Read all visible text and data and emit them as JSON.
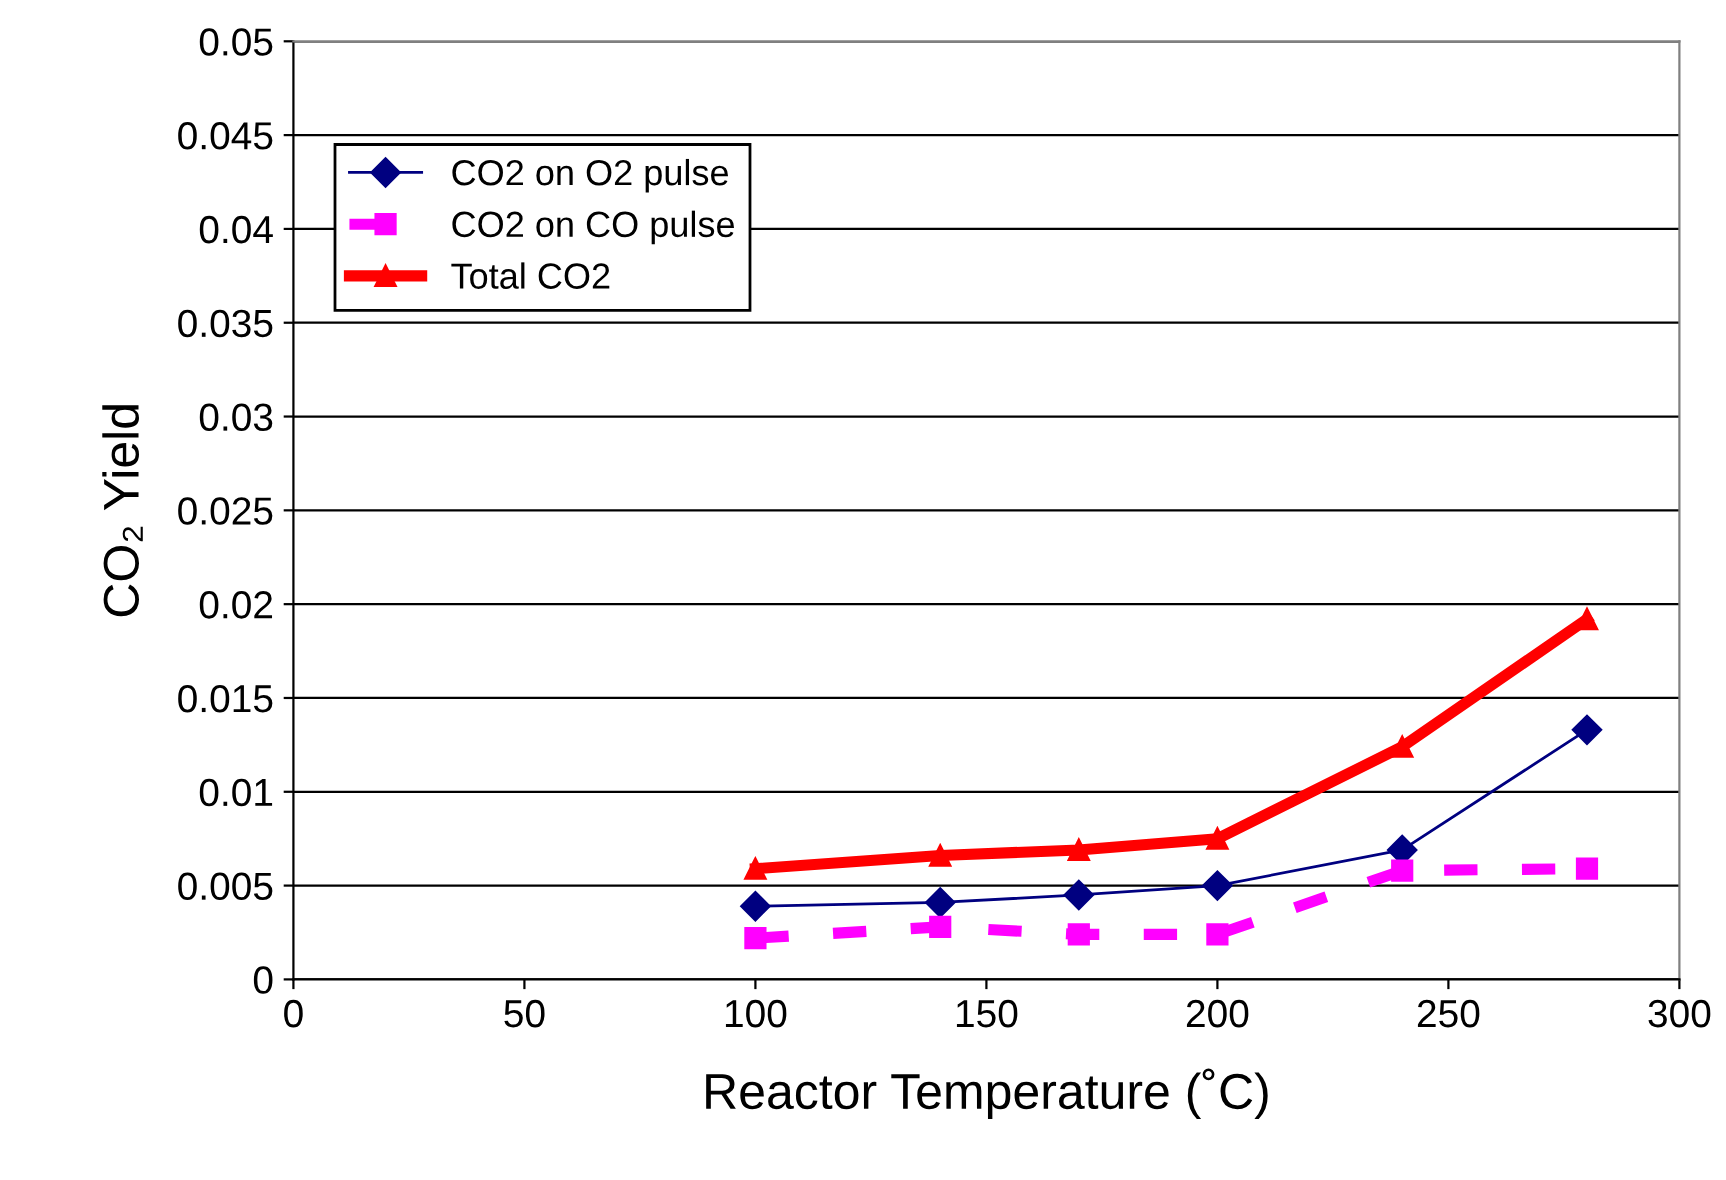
{
  "chart_data": {
    "type": "line",
    "xlabel": "Reactor Temperature (˚C)",
    "ylabel": "CO₂ Yield",
    "x": [
      100,
      140,
      170,
      200,
      240,
      280
    ],
    "series": [
      {
        "name": "CO2 on O2 pulse",
        "color": "#000080",
        "marker": "diamond",
        "line_style": "solid",
        "values": [
          0.0039,
          0.0041,
          0.0045,
          0.005,
          0.0069,
          0.0133
        ]
      },
      {
        "name": "CO2 on CO pulse",
        "color": "#ff00ff",
        "marker": "square",
        "line_style": "dashed",
        "values": [
          0.0022,
          0.0028,
          0.0024,
          0.0024,
          0.0058,
          0.0059
        ]
      },
      {
        "name": "Total CO2",
        "color": "#ff0000",
        "marker": "triangle",
        "line_style": "solid",
        "values": [
          0.0059,
          0.0066,
          0.0069,
          0.0075,
          0.0124,
          0.0192
        ]
      }
    ],
    "xlim": [
      0,
      300
    ],
    "xticks": [
      0,
      50,
      100,
      150,
      200,
      250,
      300
    ],
    "ylim": [
      0,
      0.05
    ],
    "yticks": [
      {
        "value": 0,
        "label": "0"
      },
      0.005,
      0.01,
      0.015,
      0.02,
      0.025,
      0.03,
      0.035,
      0.04,
      0.045,
      0.05
    ],
    "grid": "y",
    "legend": "top left"
  }
}
